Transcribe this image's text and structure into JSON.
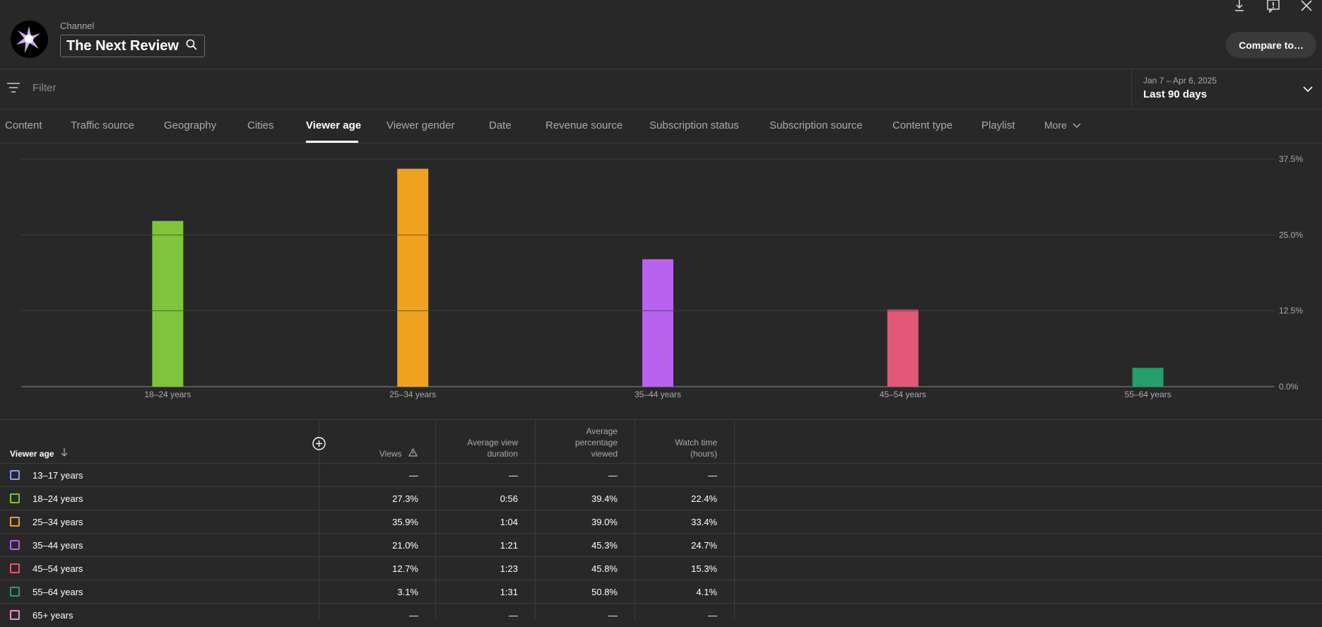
{
  "header": {
    "channel_label": "Channel",
    "channel_name": "The Next Review",
    "compare_label": "Compare to…"
  },
  "filter": {
    "placeholder": "Filter"
  },
  "date": {
    "range": "Jan 7 – Apr 6, 2025",
    "preset": "Last 90 days"
  },
  "tabs": [
    {
      "label": "Content"
    },
    {
      "label": "Traffic source"
    },
    {
      "label": "Geography"
    },
    {
      "label": "Cities"
    },
    {
      "label": "Viewer age",
      "active": true
    },
    {
      "label": "Viewer gender"
    },
    {
      "label": "Date"
    },
    {
      "label": "Revenue source"
    },
    {
      "label": "Subscription status"
    },
    {
      "label": "Subscription source"
    },
    {
      "label": "Content type"
    },
    {
      "label": "Playlist"
    },
    {
      "label": "More"
    }
  ],
  "chart_data": {
    "type": "bar",
    "categories": [
      "18–24 years",
      "25–34 years",
      "35–44 years",
      "45–54 years",
      "55–64 years"
    ],
    "values": [
      27.3,
      35.9,
      21.0,
      12.7,
      3.1
    ],
    "colors": [
      "#80c43c",
      "#eea21d",
      "#b863ee",
      "#e15976",
      "#249e6b"
    ],
    "ylim": [
      0,
      37.5
    ],
    "yticks": [
      "0.0%",
      "12.5%",
      "25.0%",
      "37.5%"
    ],
    "ytick_values": [
      0,
      12.5,
      25.0,
      37.5
    ],
    "grid": true
  },
  "table": {
    "columns": {
      "dimension": "Viewer age",
      "views": "Views",
      "avg_duration_1": "Average view",
      "avg_duration_2": "duration",
      "avg_pct_1": "Average",
      "avg_pct_2": "percentage",
      "avg_pct_3": "viewed",
      "watch_1": "Watch time",
      "watch_2": "(hours)"
    },
    "rows": [
      {
        "label": "13–17 years",
        "color": "#8a9ef0",
        "views": "—",
        "duration": "—",
        "pct": "—",
        "watch": "—"
      },
      {
        "label": "18–24 years",
        "color": "#80c43c",
        "views": "27.3%",
        "duration": "0:56",
        "pct": "39.4%",
        "watch": "22.4%"
      },
      {
        "label": "25–34 years",
        "color": "#eea21d",
        "views": "35.9%",
        "duration": "1:04",
        "pct": "39.0%",
        "watch": "33.4%"
      },
      {
        "label": "35–44 years",
        "color": "#b863ee",
        "views": "21.0%",
        "duration": "1:21",
        "pct": "45.3%",
        "watch": "24.7%"
      },
      {
        "label": "45–54 years",
        "color": "#e15976",
        "views": "12.7%",
        "duration": "1:23",
        "pct": "45.8%",
        "watch": "15.3%"
      },
      {
        "label": "55–64 years",
        "color": "#249e6b",
        "views": "3.1%",
        "duration": "1:31",
        "pct": "50.8%",
        "watch": "4.1%"
      },
      {
        "label": "65+ years",
        "color": "#e58fd4",
        "views": "—",
        "duration": "—",
        "pct": "—",
        "watch": "—"
      }
    ]
  }
}
